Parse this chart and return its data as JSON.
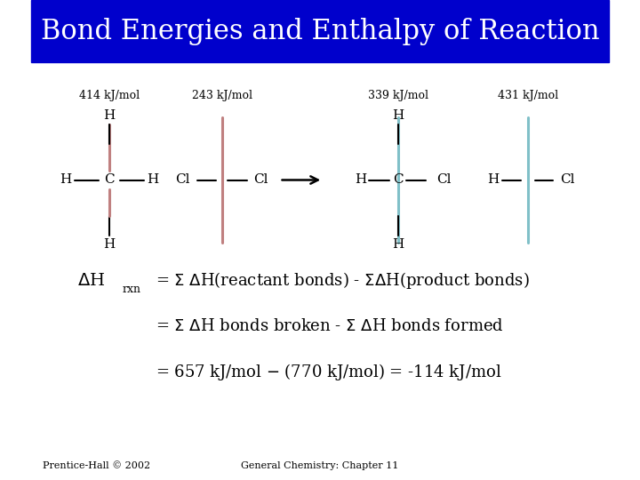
{
  "title": "Bond Energies and Enthalpy of Reaction",
  "title_bg": "#0000CC",
  "title_color": "#FFFFFF",
  "title_fontsize": 22,
  "bg_color": "#FFFFFF",
  "text_color": "#000000",
  "bond_color_reactant": "#C08080",
  "bond_color_product": "#80C0C8",
  "footer_left": "Prentice-Hall © 2002",
  "footer_right": "General Chemistry: Chapter 11",
  "energy_414": "414 kJ/mol",
  "energy_243": "243 kJ/mol",
  "energy_339": "339 kJ/mol",
  "energy_431": "431 kJ/mol"
}
